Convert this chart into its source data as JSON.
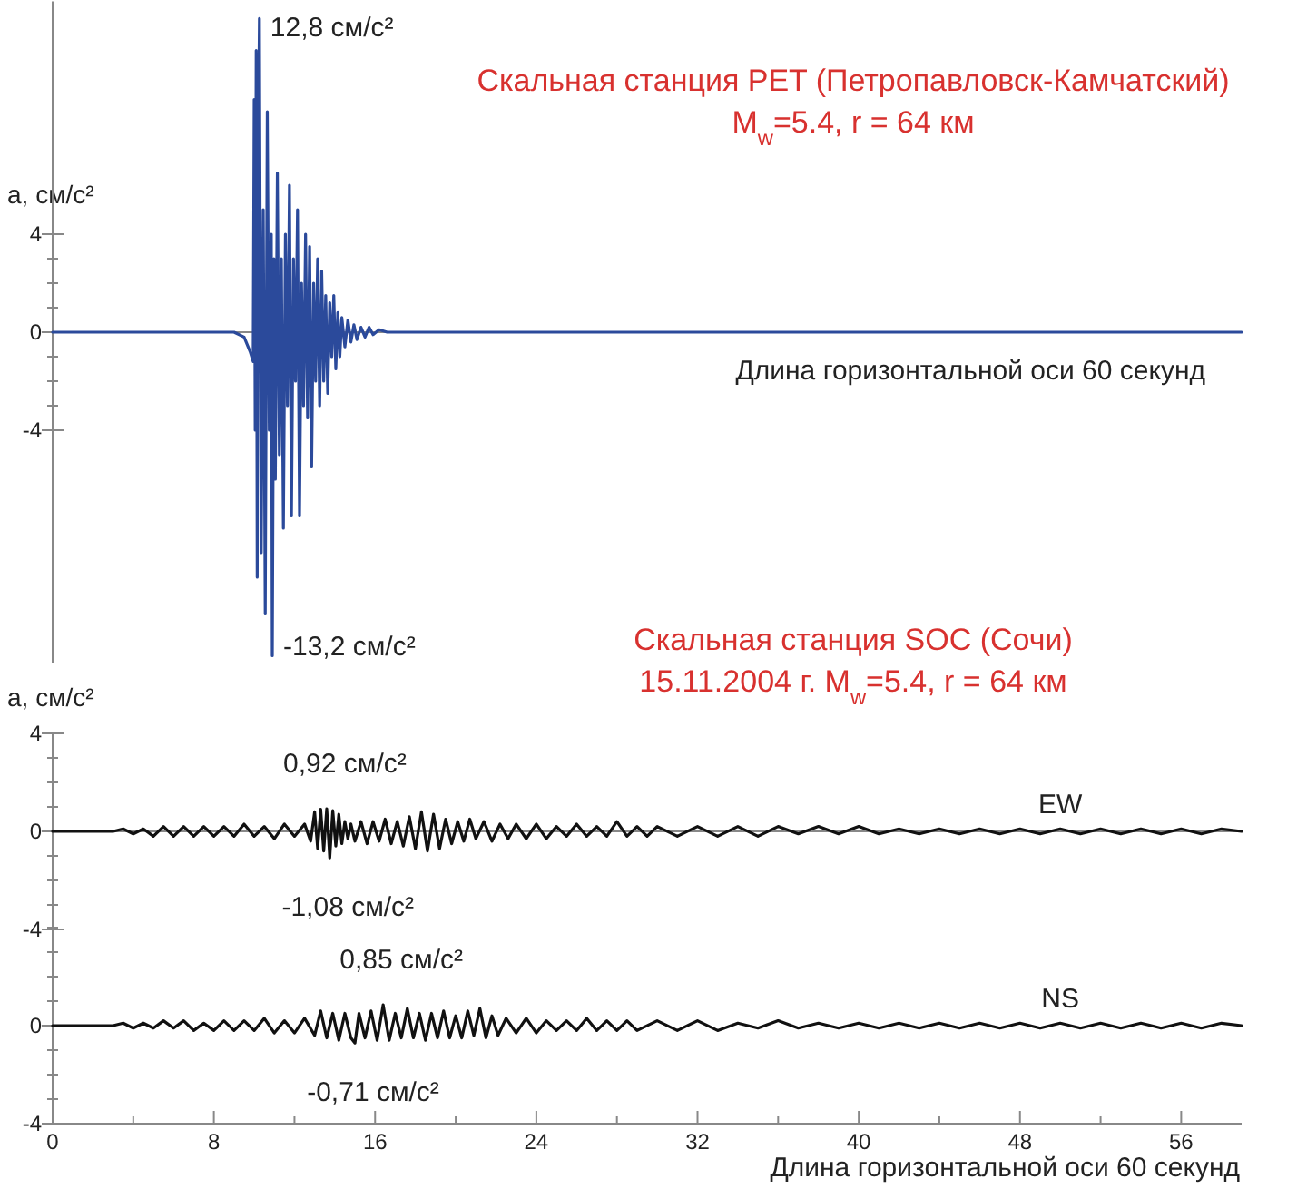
{
  "chart_data": [
    {
      "type": "line",
      "title": "Скальная станция PET (Петропавловск-Камчатский)",
      "subtitle": "M$_{w}$=5.4, r = 64 км",
      "ylabel": "а, см/с²",
      "xlabel": "Длина горизонтальной оси 60 секунд",
      "tick_labels": "y",
      "xlim": [
        0,
        59
      ],
      "ylim": [
        -13.5,
        13.5
      ],
      "yticks": [
        4,
        {
          "value": 3,
          "label": null
        },
        {
          "value": 2,
          "label": null
        },
        {
          "value": 1,
          "label": null
        },
        0,
        {
          "value": -1,
          "label": null
        },
        {
          "value": -2,
          "label": null
        },
        {
          "value": -3,
          "label": null
        },
        -4
      ],
      "annotations": [
        {
          "text": "12,8 см/с²",
          "x": 10.26,
          "y": 12.8
        },
        {
          "text": "-13,2 см/с²",
          "x": 10.9,
          "y": -13.2
        }
      ],
      "x": [
        0,
        9,
        9.5,
        9.8,
        9.95,
        10,
        10.05,
        10.1,
        10.15,
        10.2,
        10.26,
        10.35,
        10.45,
        10.55,
        10.65,
        10.75,
        10.85,
        10.9,
        10.98,
        11.05,
        11.15,
        11.25,
        11.35,
        11.45,
        11.55,
        11.65,
        11.75,
        11.85,
        11.95,
        12.05,
        12.15,
        12.25,
        12.35,
        12.45,
        12.55,
        12.65,
        12.75,
        12.85,
        12.95,
        13.05,
        13.15,
        13.25,
        13.35,
        13.45,
        13.55,
        13.65,
        13.75,
        13.85,
        13.95,
        14.05,
        14.15,
        14.25,
        14.35,
        14.5,
        14.65,
        14.8,
        14.95,
        15.1,
        15.3,
        15.5,
        15.7,
        15.9,
        16.2,
        16.6,
        59
      ],
      "series": [
        {
          "color": "#2b4a9b",
          "values": [
            0,
            0,
            -0.2,
            -0.8,
            -1.2,
            9.5,
            -4,
            11.5,
            -10,
            7,
            12.8,
            -9,
            5,
            -11.5,
            9,
            -4,
            4,
            -13.2,
            3,
            -6,
            6.5,
            -5,
            3,
            -8,
            4,
            -3,
            6,
            -7.5,
            3,
            -2,
            5,
            -7.5,
            2,
            -3,
            4,
            -3.5,
            3.5,
            -5.5,
            2,
            -2,
            3,
            -3,
            2.5,
            -2,
            1.5,
            -2.5,
            1.2,
            -1,
            1.5,
            -1.5,
            0.8,
            -1,
            0.6,
            -0.6,
            0.5,
            -0.4,
            0.3,
            -0.3,
            0.2,
            -0.2,
            0.2,
            -0.1,
            0.1,
            0,
            0
          ]
        }
      ]
    },
    {
      "type": "line",
      "title": "Скальная станция SOC (Сочи)",
      "subtitle": "15.11.2004 г.  M$_{w}$=5.4, r = 64 км",
      "ylabel": "а, см/с²",
      "tick_labels": "y",
      "xlim": [
        0,
        59
      ],
      "ylim": [
        -4,
        4
      ],
      "yticks": [
        4,
        {
          "value": 3,
          "label": null
        },
        {
          "value": 2,
          "label": null
        },
        {
          "value": 1,
          "label": null
        },
        0,
        {
          "value": -1,
          "label": null
        },
        {
          "value": -2,
          "label": null
        },
        {
          "value": -3,
          "label": null
        },
        -4
      ],
      "annotations": [
        {
          "text": "0,92 см/с²",
          "x": 13.6,
          "y": 0.92
        },
        {
          "text": "-1,08 см/с²",
          "x": 13.75,
          "y": -1.08
        }
      ],
      "x": [
        0,
        3,
        3.5,
        4,
        4.5,
        5,
        5.5,
        6,
        6.5,
        7,
        7.5,
        8,
        8.5,
        9,
        9.5,
        10,
        10.5,
        11,
        11.5,
        12,
        12.5,
        12.8,
        13,
        13.15,
        13.3,
        13.45,
        13.6,
        13.75,
        13.9,
        14.05,
        14.2,
        14.35,
        14.5,
        14.65,
        14.8,
        15,
        15.3,
        15.6,
        15.9,
        16.2,
        16.5,
        16.8,
        17.1,
        17.4,
        17.7,
        18,
        18.3,
        18.6,
        18.9,
        19.2,
        19.5,
        19.8,
        20.1,
        20.4,
        20.7,
        21,
        21.4,
        21.8,
        22.2,
        22.6,
        23,
        23.5,
        24,
        24.5,
        25,
        25.5,
        26,
        26.5,
        27,
        27.5,
        28,
        28.5,
        29,
        29.5,
        30,
        31,
        32,
        33,
        34,
        35,
        36,
        37,
        38,
        39,
        40,
        41,
        42,
        43,
        44,
        45,
        46,
        47,
        48,
        49,
        50,
        51,
        52,
        53,
        54,
        55,
        56,
        57,
        58,
        59
      ],
      "series": [
        {
          "name": "EW",
          "color": "#111111",
          "values": [
            0,
            0,
            0.1,
            -0.1,
            0.1,
            -0.2,
            0.2,
            -0.2,
            0.2,
            -0.2,
            0.2,
            -0.2,
            0.2,
            -0.2,
            0.3,
            -0.2,
            0.2,
            -0.3,
            0.3,
            -0.2,
            0.3,
            -0.4,
            0.8,
            -0.7,
            0.9,
            -0.8,
            0.92,
            -1.08,
            0.85,
            -0.6,
            0.7,
            -0.5,
            0.4,
            -0.3,
            0.3,
            -0.4,
            0.4,
            -0.5,
            0.4,
            -0.4,
            0.5,
            -0.5,
            0.4,
            -0.6,
            0.6,
            -0.7,
            0.8,
            -0.8,
            0.7,
            -0.7,
            0.5,
            -0.5,
            0.4,
            -0.4,
            0.5,
            -0.3,
            0.4,
            -0.4,
            0.3,
            -0.3,
            0.3,
            -0.3,
            0.3,
            -0.3,
            0.2,
            -0.2,
            0.3,
            -0.2,
            0.2,
            -0.2,
            0.4,
            -0.2,
            0.2,
            -0.2,
            0.2,
            -0.2,
            0.2,
            -0.2,
            0.2,
            -0.2,
            0.2,
            -0.1,
            0.2,
            -0.1,
            0.2,
            -0.1,
            0.1,
            -0.1,
            0.1,
            -0.1,
            0.1,
            -0.1,
            0.1,
            -0.1,
            0.1,
            -0.1,
            0.1,
            -0.1,
            0.1,
            -0.1,
            0.1,
            -0.1,
            0.1,
            0
          ]
        }
      ]
    },
    {
      "type": "line",
      "xlabel": "Длина горизонтальной оси 60 секунд",
      "xlim": [
        0,
        59
      ],
      "ylim": [
        -4,
        4
      ],
      "xticks": [
        0,
        {
          "value": 4,
          "label": null
        },
        8,
        {
          "value": 12,
          "label": null
        },
        16,
        {
          "value": 20,
          "label": null
        },
        24,
        {
          "value": 28,
          "label": null
        },
        32,
        {
          "value": 36,
          "label": null
        },
        40,
        {
          "value": 44,
          "label": null
        },
        48,
        {
          "value": 52,
          "label": null
        },
        56
      ],
      "yticks": [
        {
          "value": 4,
          "label": null
        },
        {
          "value": 3,
          "label": null
        },
        {
          "value": 2,
          "label": null
        },
        {
          "value": 1,
          "label": null
        },
        0,
        {
          "value": -1,
          "label": null
        },
        {
          "value": -2,
          "label": null
        },
        {
          "value": -3,
          "label": null
        },
        -4
      ],
      "annotations": [
        {
          "text": "0,85 см/с²",
          "x": 16.4,
          "y": 0.85
        },
        {
          "text": "-0,71 см/с²",
          "x": 15,
          "y": -0.71
        }
      ],
      "x": [
        0,
        3,
        3.5,
        4,
        4.5,
        5,
        5.5,
        6,
        6.5,
        7,
        7.5,
        8,
        8.5,
        9,
        9.5,
        10,
        10.5,
        11,
        11.5,
        12,
        12.5,
        13,
        13.3,
        13.6,
        13.9,
        14.2,
        14.5,
        14.8,
        15,
        15.2,
        15.5,
        15.8,
        16.1,
        16.4,
        16.7,
        17,
        17.3,
        17.6,
        17.9,
        18.2,
        18.5,
        18.8,
        19.1,
        19.4,
        19.7,
        20,
        20.3,
        20.6,
        20.9,
        21.2,
        21.5,
        21.8,
        22.1,
        22.5,
        23,
        23.5,
        24,
        24.5,
        25,
        25.5,
        26,
        26.5,
        27,
        27.5,
        28,
        28.5,
        29,
        30,
        31,
        32,
        33,
        34,
        35,
        36,
        37,
        38,
        39,
        40,
        41,
        42,
        43,
        44,
        45,
        46,
        47,
        48,
        49,
        50,
        51,
        52,
        53,
        54,
        55,
        56,
        57,
        58,
        59
      ],
      "series": [
        {
          "name": "NS",
          "color": "#111111",
          "values": [
            0,
            0,
            0.1,
            -0.1,
            0.1,
            -0.1,
            0.2,
            -0.1,
            0.2,
            -0.2,
            0.1,
            -0.2,
            0.2,
            -0.2,
            0.2,
            -0.2,
            0.3,
            -0.3,
            0.2,
            -0.3,
            0.3,
            -0.4,
            0.6,
            -0.5,
            0.5,
            -0.6,
            0.5,
            -0.5,
            -0.71,
            0.5,
            -0.5,
            0.6,
            -0.6,
            0.85,
            -0.6,
            0.5,
            -0.5,
            0.7,
            -0.5,
            0.5,
            -0.6,
            0.5,
            -0.5,
            0.6,
            -0.5,
            0.4,
            -0.5,
            0.6,
            -0.4,
            0.7,
            -0.5,
            0.4,
            -0.4,
            0.3,
            -0.3,
            0.3,
            -0.3,
            0.2,
            -0.2,
            0.2,
            -0.2,
            0.3,
            -0.2,
            0.2,
            -0.2,
            0.2,
            -0.2,
            0.2,
            -0.2,
            0.2,
            -0.2,
            0.1,
            -0.1,
            0.2,
            -0.1,
            0.1,
            -0.1,
            0.1,
            -0.1,
            0.1,
            -0.1,
            0.1,
            -0.1,
            0.1,
            -0.1,
            0.1,
            -0.1,
            0.1,
            -0.1,
            0.1,
            -0.1,
            0.1,
            -0.1,
            0.1,
            -0.1,
            0.1,
            0
          ]
        }
      ]
    }
  ]
}
